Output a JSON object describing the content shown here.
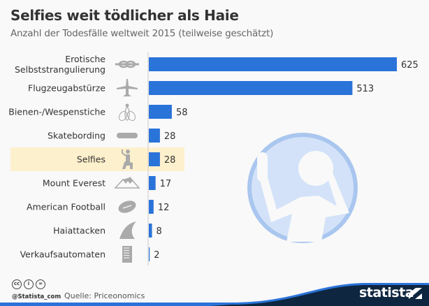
{
  "header": {
    "title": "Selfies weit tödlicher als Haie",
    "subtitle": "Anzahl der Todesfälle weltweit 2015 (teilweise geschätzt)"
  },
  "chart_data": {
    "type": "bar",
    "orientation": "horizontal",
    "title": "Selfies weit tödlicher als Haie",
    "subtitle": "Anzahl der Todesfälle weltweit 2015 (teilweise geschätzt)",
    "xlabel": "",
    "ylabel": "",
    "xlim": [
      0,
      625
    ],
    "grid": false,
    "categories": [
      "Erotische Selbststrangulierung",
      "Flugzeugabstürze",
      "Bienen-/Wespenstiche",
      "Skatebording",
      "Selfies",
      "Mount Everest",
      "American Football",
      "Haiattacken",
      "Verkaufsautomaten"
    ],
    "category_lines": [
      [
        "Erotische",
        "Selbststrangulierung"
      ],
      [
        "Flugzeugabstürze"
      ],
      [
        "Bienen-/Wespenstiche"
      ],
      [
        "Skatebording"
      ],
      [
        "Selfies"
      ],
      [
        "Mount Everest"
      ],
      [
        "American Football"
      ],
      [
        "Haiattacken"
      ],
      [
        "Verkaufsautomaten"
      ]
    ],
    "icons": [
      "knot-icon",
      "airplane-icon",
      "bee-icon",
      "skateboard-icon",
      "selfie-person-icon",
      "mountain-icon",
      "football-icon",
      "shark-fin-icon",
      "vending-machine-icon"
    ],
    "values": [
      625,
      513,
      58,
      28,
      28,
      17,
      12,
      8,
      2
    ],
    "highlighted_category": "Selfies",
    "colors": {
      "bar": "#2a73d9",
      "highlight": "#fdf0cc",
      "icon": "#aaaaaa",
      "axis": "#cccccc"
    }
  },
  "footer": {
    "handle": "@Statista_com",
    "source": "Quelle: Priceonomics",
    "license_icons": [
      "cc-icon",
      "attribution-icon",
      "no-derivatives-icon"
    ],
    "license_text": [
      "cc",
      "i",
      "="
    ],
    "brand": "statista"
  }
}
